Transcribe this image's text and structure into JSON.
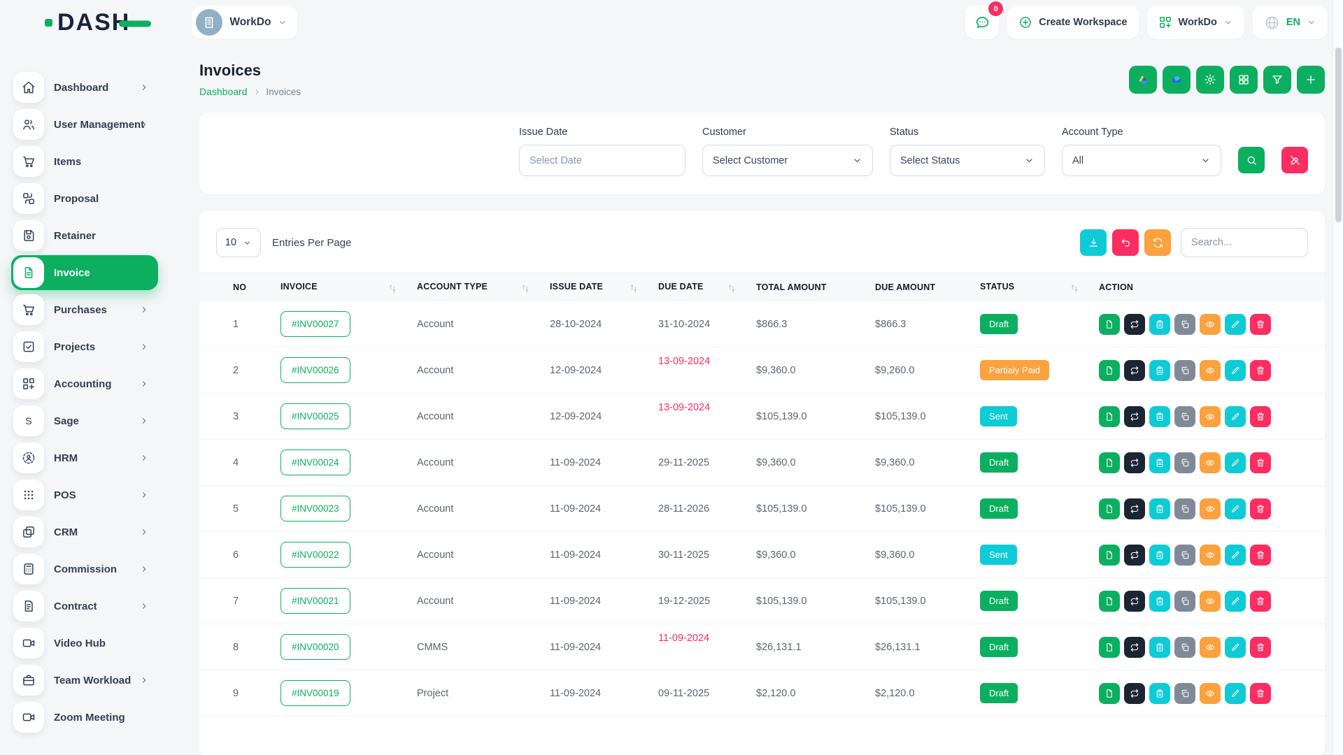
{
  "colors": {
    "primary_green": "#0caf60",
    "pink": "#fc2d60",
    "orange": "#fba13d",
    "cyan": "#0ecbd6",
    "dark_navy": "#1b2533",
    "gray": "#808a97",
    "overdue_text": "#fc2d60"
  },
  "topbar": {
    "logo_text": "DASH",
    "workspace_name": "WorkDo",
    "notification_count": "0",
    "create_workspace_label": "Create Workspace",
    "app_switcher_label": "WorkDo",
    "language": "EN"
  },
  "sidebar": {
    "items": [
      {
        "label": "Dashboard",
        "icon": "home",
        "chevron": true,
        "active": false
      },
      {
        "label": "User Management",
        "icon": "users",
        "chevron": true,
        "active": false
      },
      {
        "label": "Items",
        "icon": "cart",
        "chevron": false,
        "active": false
      },
      {
        "label": "Proposal",
        "icon": "workflow",
        "chevron": false,
        "active": false
      },
      {
        "label": "Retainer",
        "icon": "save",
        "chevron": false,
        "active": false
      },
      {
        "label": "Invoice",
        "icon": "file",
        "chevron": false,
        "active": true
      },
      {
        "label": "Purchases",
        "icon": "cart",
        "chevron": true,
        "active": false
      },
      {
        "label": "Projects",
        "icon": "check-square",
        "chevron": true,
        "active": false
      },
      {
        "label": "Accounting",
        "icon": "grid-plus",
        "chevron": true,
        "active": false
      },
      {
        "label": "Sage",
        "icon": "sage",
        "chevron": true,
        "active": false
      },
      {
        "label": "HRM",
        "icon": "hrm",
        "chevron": true,
        "active": false
      },
      {
        "label": "POS",
        "icon": "dots-grid",
        "chevron": true,
        "active": false
      },
      {
        "label": "CRM",
        "icon": "crm",
        "chevron": true,
        "active": false
      },
      {
        "label": "Commission",
        "icon": "calculator",
        "chevron": true,
        "active": false
      },
      {
        "label": "Contract",
        "icon": "contract",
        "chevron": true,
        "active": false
      },
      {
        "label": "Video Hub",
        "icon": "video",
        "chevron": false,
        "active": false
      },
      {
        "label": "Team Workload",
        "icon": "workload",
        "chevron": true,
        "active": false
      },
      {
        "label": "Zoom Meeting",
        "icon": "video",
        "chevron": false,
        "active": false
      }
    ]
  },
  "page": {
    "title": "Invoices",
    "breadcrumb_home": "Dashboard",
    "breadcrumb_current": "Invoices",
    "header_buttons": [
      {
        "name": "google-drive",
        "icon": "gdrive"
      },
      {
        "name": "onedrive",
        "icon": "onedrive"
      },
      {
        "name": "settings",
        "icon": "gear"
      },
      {
        "name": "modules",
        "icon": "grid4"
      },
      {
        "name": "filter",
        "icon": "funnel"
      },
      {
        "name": "create-invoice",
        "icon": "plus"
      }
    ]
  },
  "filters": {
    "issue_date_label": "Issue Date",
    "issue_date_placeholder": "Select Date",
    "customer_label": "Customer",
    "customer_value": "Select Customer",
    "status_label": "Status",
    "status_value": "Select Status",
    "account_type_label": "Account Type",
    "account_type_value": "All"
  },
  "table": {
    "entries_per_page": "10",
    "entries_label": "Entries Per Page",
    "search_placeholder": "Search...",
    "columns": [
      {
        "label": "NO",
        "sortable": false
      },
      {
        "label": "INVOICE",
        "sortable": true
      },
      {
        "label": "ACCOUNT TYPE",
        "sortable": true
      },
      {
        "label": "ISSUE DATE",
        "sortable": true
      },
      {
        "label": "DUE DATE",
        "sortable": true
      },
      {
        "label": "TOTAL AMOUNT",
        "sortable": false
      },
      {
        "label": "DUE AMOUNT",
        "sortable": false
      },
      {
        "label": "STATUS",
        "sortable": true
      },
      {
        "label": "ACTION",
        "sortable": false
      }
    ],
    "row_actions": [
      {
        "name": "invoice-pdf",
        "icon": "file-sm",
        "color": "#0caf60"
      },
      {
        "name": "convert",
        "icon": "repeat",
        "color": "#1b2533"
      },
      {
        "name": "duplicate-invoice",
        "icon": "clipboard",
        "color": "#0ecbd6"
      },
      {
        "name": "copy-link",
        "icon": "copy",
        "color": "#808a97"
      },
      {
        "name": "view-invoice",
        "icon": "eye",
        "color": "#fba13d"
      },
      {
        "name": "edit-invoice",
        "icon": "pencil",
        "color": "#0ecbd6"
      },
      {
        "name": "delete-invoice",
        "icon": "trash",
        "color": "#fc2d60"
      }
    ],
    "rows": [
      {
        "no": "1",
        "invoice": "#INV00027",
        "account_type": "Account",
        "issue_date": "28-10-2024",
        "due_date": "31-10-2024",
        "overdue": false,
        "total_amount": "$866.3",
        "due_amount": "$866.3",
        "status": "Draft",
        "status_color": "#0caf60"
      },
      {
        "no": "2",
        "invoice": "#INV00026",
        "account_type": "Account",
        "issue_date": "12-09-2024",
        "due_date": "13-09-2024",
        "overdue": true,
        "total_amount": "$9,360.0",
        "due_amount": "$9,260.0",
        "status": "Partialy Paid",
        "status_color": "#fba13d"
      },
      {
        "no": "3",
        "invoice": "#INV00025",
        "account_type": "Account",
        "issue_date": "12-09-2024",
        "due_date": "13-09-2024",
        "overdue": true,
        "total_amount": "$105,139.0",
        "due_amount": "$105,139.0",
        "status": "Sent",
        "status_color": "#0ecbd6"
      },
      {
        "no": "4",
        "invoice": "#INV00024",
        "account_type": "Account",
        "issue_date": "11-09-2024",
        "due_date": "29-11-2025",
        "overdue": false,
        "total_amount": "$9,360.0",
        "due_amount": "$9,360.0",
        "status": "Draft",
        "status_color": "#0caf60"
      },
      {
        "no": "5",
        "invoice": "#INV00023",
        "account_type": "Account",
        "issue_date": "11-09-2024",
        "due_date": "28-11-2026",
        "overdue": false,
        "total_amount": "$105,139.0",
        "due_amount": "$105,139.0",
        "status": "Draft",
        "status_color": "#0caf60"
      },
      {
        "no": "6",
        "invoice": "#INV00022",
        "account_type": "Account",
        "issue_date": "11-09-2024",
        "due_date": "30-11-2025",
        "overdue": false,
        "total_amount": "$9,360.0",
        "due_amount": "$9,360.0",
        "status": "Sent",
        "status_color": "#0ecbd6"
      },
      {
        "no": "7",
        "invoice": "#INV00021",
        "account_type": "Account",
        "issue_date": "11-09-2024",
        "due_date": "19-12-2025",
        "overdue": false,
        "total_amount": "$105,139.0",
        "due_amount": "$105,139.0",
        "status": "Draft",
        "status_color": "#0caf60"
      },
      {
        "no": "8",
        "invoice": "#INV00020",
        "account_type": "CMMS",
        "issue_date": "11-09-2024",
        "due_date": "11-09-2024",
        "overdue": true,
        "total_amount": "$26,131.1",
        "due_amount": "$26,131.1",
        "status": "Draft",
        "status_color": "#0caf60"
      },
      {
        "no": "9",
        "invoice": "#INV00019",
        "account_type": "Project",
        "issue_date": "11-09-2024",
        "due_date": "09-11-2025",
        "overdue": false,
        "total_amount": "$2,120.0",
        "due_amount": "$2,120.0",
        "status": "Draft",
        "status_color": "#0caf60"
      }
    ]
  }
}
